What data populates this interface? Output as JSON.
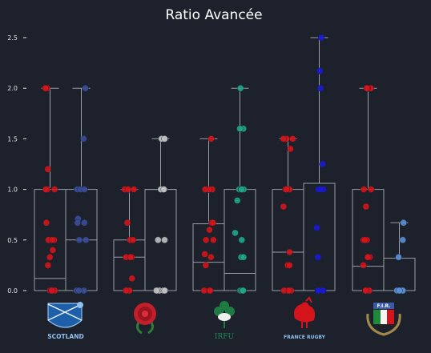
{
  "chart_data": {
    "type": "box",
    "title": "Ratio Avancée",
    "ylim": [
      0,
      2.5
    ],
    "yticks": [
      "0.0",
      "0.5",
      "1.0",
      "1.5",
      "2.0",
      "2.5"
    ],
    "grid": false,
    "colors": {
      "background": "#1c212b",
      "box_line": "#9a9ea6"
    },
    "teams": [
      {
        "team": "Scotland",
        "logo_text": "SCOTLAND",
        "logo_icon": "thistle-shield-icon",
        "series": [
          {
            "color": "#d4141b",
            "median": 0.12,
            "q1": 0.0,
            "q3": 1.0,
            "whisker_low": 0.0,
            "whisker_high": 2.0,
            "points": [
              2.0,
              2.0,
              2.0,
              1.2,
              1.0,
              1.0,
              1.0,
              0.67,
              0.5,
              0.5,
              0.5,
              0.4,
              0.33,
              0.25,
              0.0,
              0.0,
              0.0,
              0.0
            ]
          },
          {
            "color": "#3a4d99",
            "median": 0.5,
            "q1": 0.0,
            "q3": 1.0,
            "whisker_low": 0.0,
            "whisker_high": 2.0,
            "points": [
              2.0,
              1.5,
              1.0,
              1.0,
              1.0,
              0.71,
              0.67,
              0.67,
              0.5,
              0.5,
              0.0,
              0.0,
              0.0
            ]
          }
        ]
      },
      {
        "team": "England",
        "logo_text": "",
        "logo_icon": "rose-icon",
        "series": [
          {
            "color": "#d4141b",
            "median": 0.33,
            "q1": 0.0,
            "q3": 0.5,
            "whisker_low": 0.0,
            "whisker_high": 1.0,
            "points": [
              1.0,
              1.0,
              1.0,
              0.67,
              0.5,
              0.5,
              0.33,
              0.33,
              0.33,
              0.12,
              0.0,
              0.0,
              0.0
            ]
          },
          {
            "color": "#c0c0c0",
            "median": 1.0,
            "q1": 0.0,
            "q3": 1.0,
            "whisker_low": 0.0,
            "whisker_high": 1.5,
            "points": [
              1.5,
              1.5,
              1.5,
              1.0,
              1.0,
              1.0,
              1.0,
              0.5,
              0.5,
              0.0,
              0.0,
              0.0,
              0.0,
              0.0,
              0.0
            ]
          }
        ]
      },
      {
        "team": "Ireland",
        "logo_text": "IRFU",
        "logo_icon": "shamrock-icon",
        "series": [
          {
            "color": "#d4141b",
            "median": 0.28,
            "q1": 0.0,
            "q3": 0.66,
            "whisker_low": 0.0,
            "whisker_high": 1.5,
            "points": [
              1.5,
              1.0,
              1.0,
              1.0,
              0.67,
              0.67,
              0.6,
              0.5,
              0.5,
              0.36,
              0.33,
              0.25,
              0.0,
              0.0,
              0.0,
              0.0
            ]
          },
          {
            "color": "#1fa68a",
            "median": 0.17,
            "q1": 0.0,
            "q3": 1.0,
            "whisker_low": 0.0,
            "whisker_high": 2.0,
            "points": [
              2.0,
              1.6,
              1.6,
              1.0,
              1.0,
              1.0,
              1.0,
              1.0,
              0.89,
              0.57,
              0.5,
              0.33,
              0.33,
              0.0,
              0.0,
              0.0,
              0.0,
              0.0
            ]
          }
        ]
      },
      {
        "team": "France",
        "logo_text": "FRANCE RUGBY",
        "logo_icon": "rooster-icon",
        "series": [
          {
            "color": "#d4141b",
            "median": 0.38,
            "q1": 0.0,
            "q3": 1.0,
            "whisker_low": 0.0,
            "whisker_high": 1.5,
            "points": [
              1.5,
              1.5,
              1.5,
              1.4,
              1.0,
              1.0,
              1.0,
              0.83,
              0.38,
              0.25,
              0.25,
              0.0,
              0.0,
              0.0,
              0.0
            ]
          },
          {
            "color": "#1a1ad6",
            "median": 0.0,
            "q1": 0.0,
            "q3": 1.06,
            "whisker_low": 0.0,
            "whisker_high": 2.5,
            "points": [
              2.5,
              2.17,
              2.0,
              1.25,
              1.0,
              1.0,
              1.0,
              0.62,
              0.33,
              0.0,
              0.0,
              0.0,
              0.0
            ]
          }
        ]
      },
      {
        "team": "Italy",
        "logo_text": "F.I.R.",
        "logo_icon": "italian-crest-icon",
        "series": [
          {
            "color": "#d4141b",
            "median": 0.24,
            "q1": 0.0,
            "q3": 1.0,
            "whisker_low": 0.0,
            "whisker_high": 2.0,
            "points": [
              2.0,
              2.0,
              2.0,
              2.0,
              1.0,
              1.0,
              0.83,
              0.5,
              0.5,
              0.5,
              0.33,
              0.33,
              0.33,
              0.25,
              0.0,
              0.0,
              0.0,
              0.0
            ]
          },
          {
            "color": "#5b8fd6",
            "median": 0.0,
            "q1": 0.0,
            "q3": 0.32,
            "whisker_low": 0.0,
            "whisker_high": 0.67,
            "points": [
              0.67,
              0.5,
              0.33,
              0.0,
              0.0,
              0.0,
              0.0,
              0.0
            ]
          }
        ]
      }
    ]
  }
}
